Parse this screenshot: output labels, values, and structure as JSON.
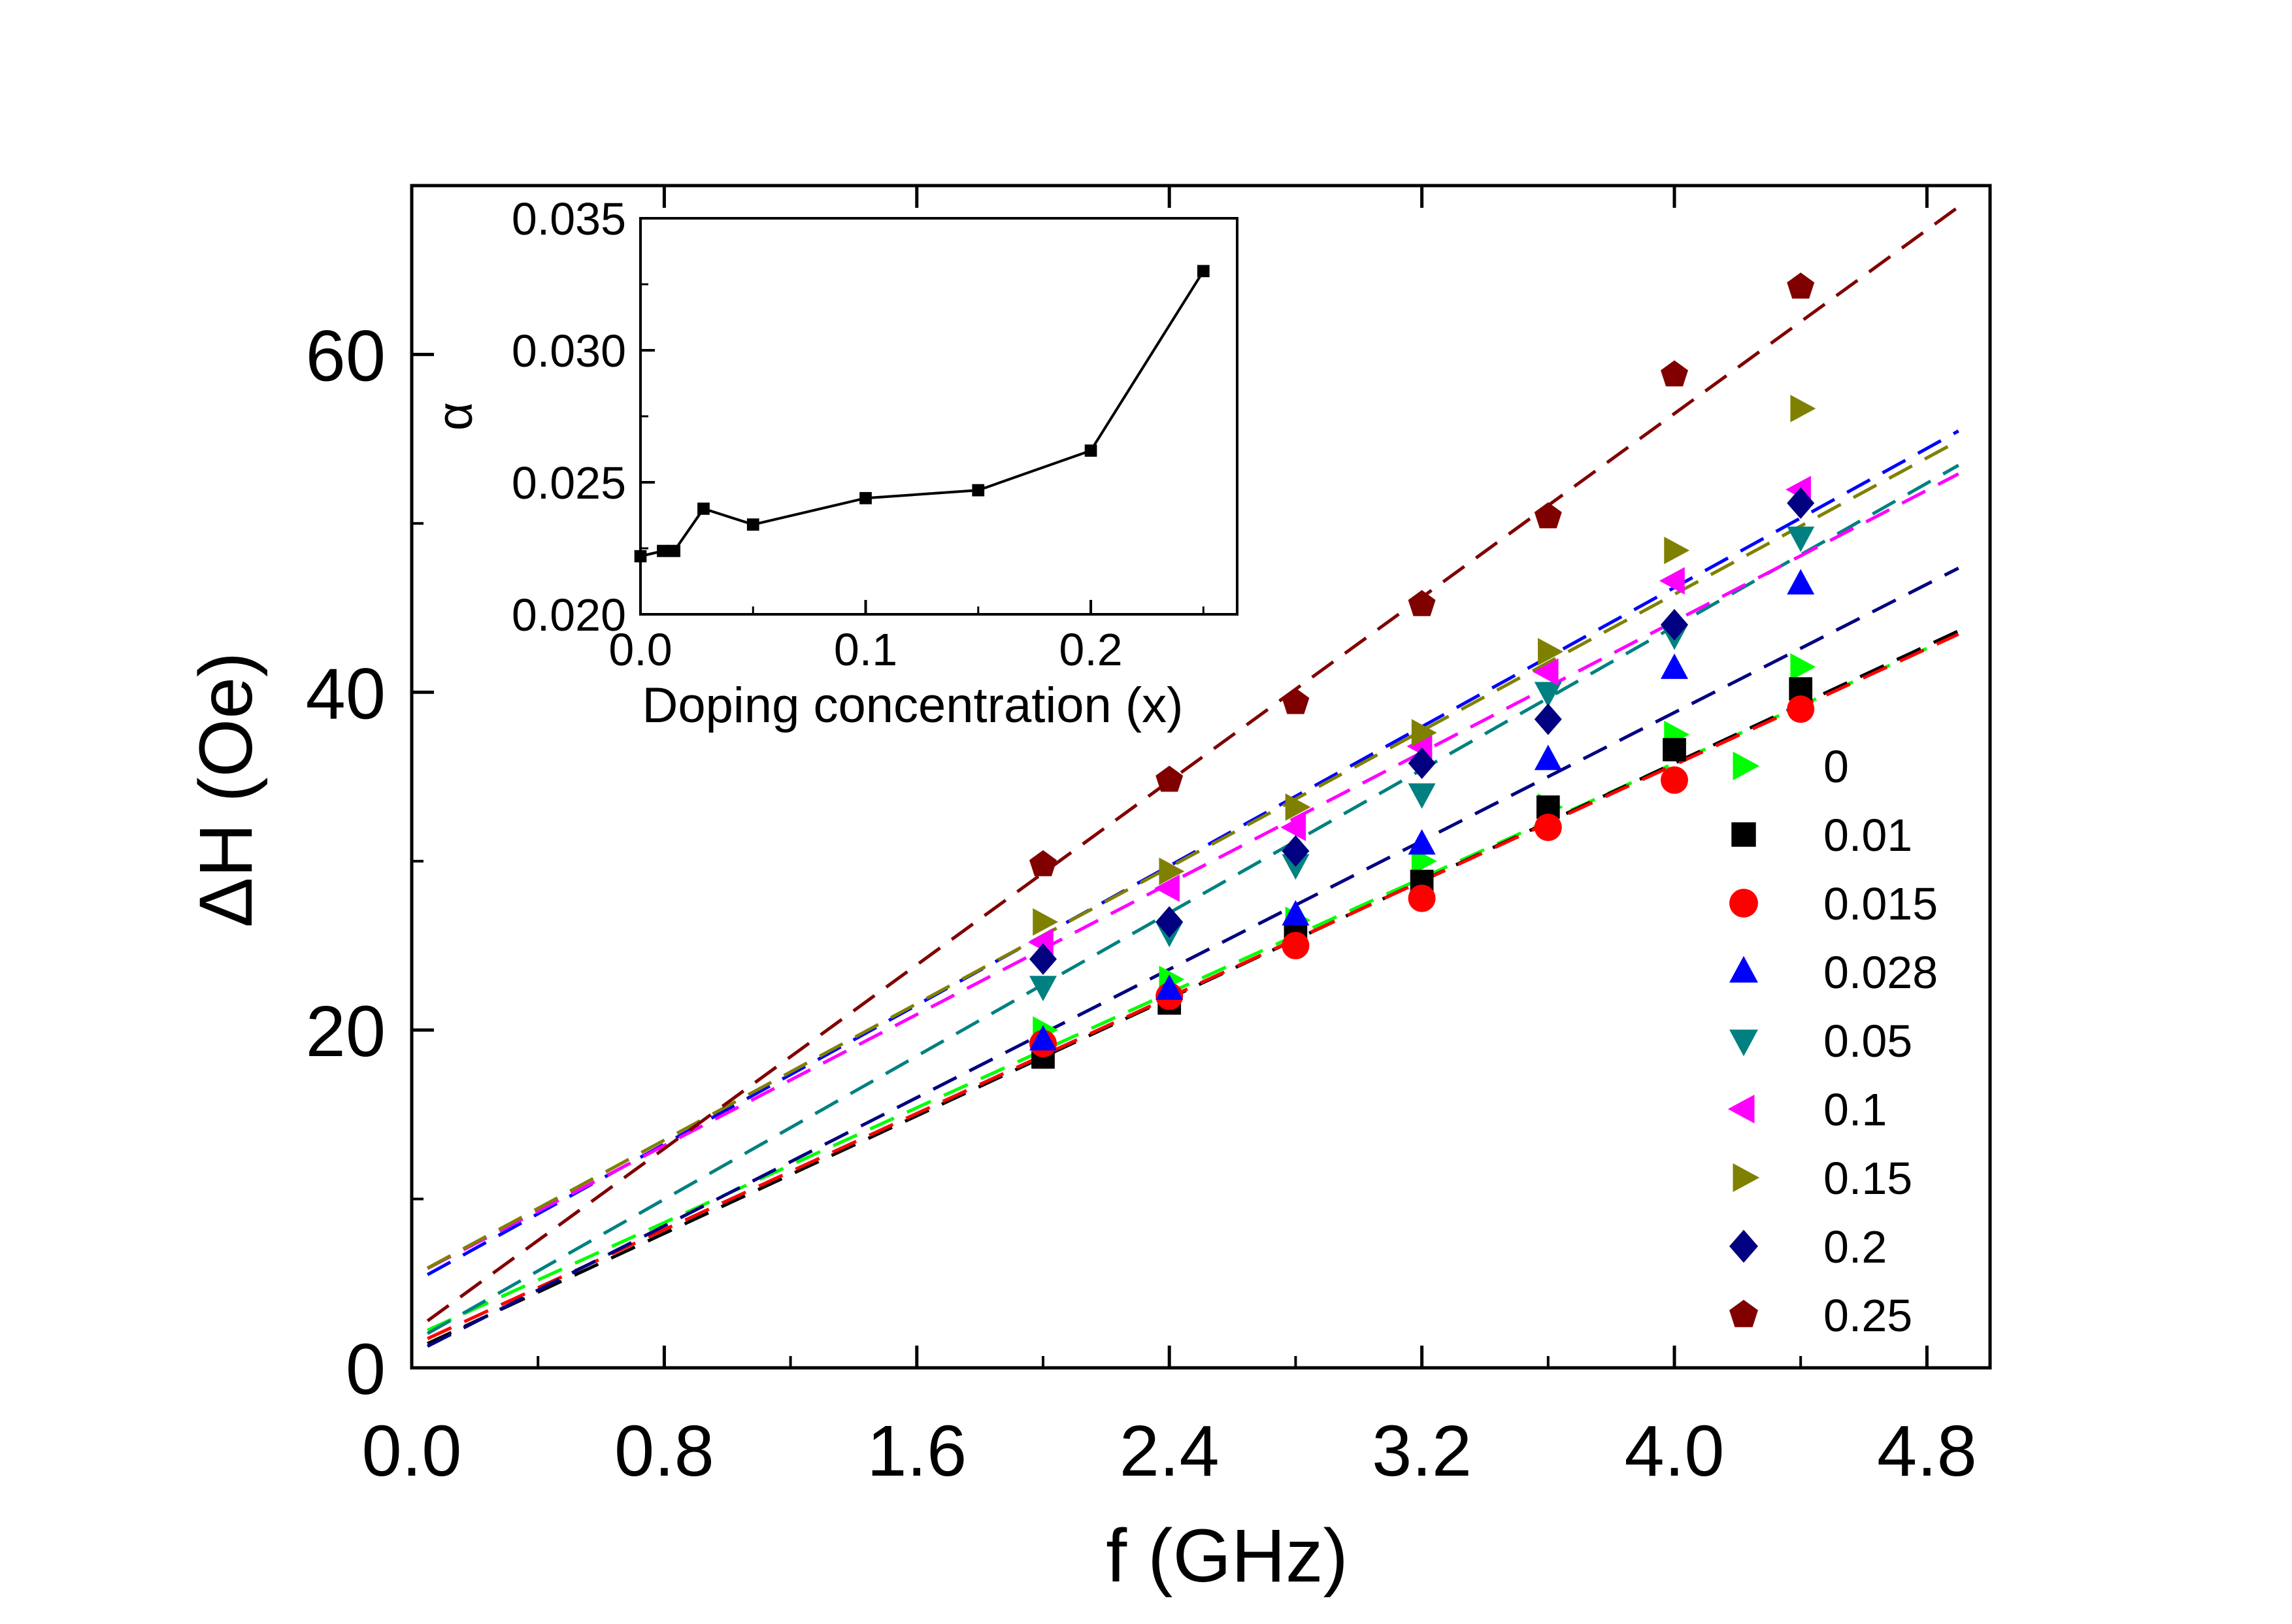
{
  "chart_data": [
    {
      "type": "scatter",
      "role": "main",
      "title": "",
      "xlabel": "f (GHz)",
      "ylabel": "ΔH (Oe)",
      "xlim": [
        0.0,
        5.0
      ],
      "ylim": [
        0,
        70
      ],
      "xticks": [
        0.0,
        0.8,
        1.6,
        2.4,
        3.2,
        4.0,
        4.8
      ],
      "xtick_labels": [
        "0.0",
        "0.8",
        "1.6",
        "2.4",
        "3.2",
        "4.0",
        "4.8"
      ],
      "yticks": [
        0,
        20,
        40,
        60
      ],
      "ytick_labels": [
        "0",
        "20",
        "40",
        "60"
      ],
      "grid": false,
      "legend_position": "bottom-right",
      "x": [
        2.0,
        2.4,
        2.8,
        3.2,
        3.6,
        4.0,
        4.4
      ],
      "series": [
        {
          "name": "0",
          "color": "#00FF00",
          "marker": "triangle-right",
          "values": [
            20.0,
            23.0,
            26.5,
            30.0,
            33.2,
            37.5,
            41.5
          ],
          "fit": {
            "intercept": 1.8,
            "slope": 8.5
          }
        },
        {
          "name": "0.01",
          "color": "#000000",
          "marker": "square",
          "values": [
            18.4,
            21.6,
            25.6,
            28.8,
            33.2,
            36.6,
            40.2
          ],
          "fit": {
            "intercept": 1.0,
            "slope": 8.7
          }
        },
        {
          "name": "0.015",
          "color": "#FF0000",
          "marker": "circle",
          "values": [
            19.2,
            22.0,
            25.0,
            27.8,
            32.0,
            34.8,
            39.0
          ],
          "fit": {
            "intercept": 1.3,
            "slope": 8.6
          }
        },
        {
          "name": "0.028",
          "color": "#0000FF",
          "marker": "triangle-up",
          "values": [
            19.4,
            22.4,
            26.8,
            31.0,
            36.0,
            41.4,
            46.4
          ],
          "fit": {
            "intercept": 5.0,
            "slope": 10.3
          }
        },
        {
          "name": "0.05",
          "color": "#008080",
          "marker": "triangle-down",
          "values": [
            22.6,
            25.8,
            29.8,
            34.0,
            40.0,
            43.4,
            49.2
          ],
          "fit": {
            "intercept": 1.5,
            "slope": 10.6
          }
        },
        {
          "name": "0.1",
          "color": "#FF00FF",
          "marker": "triangle-left",
          "values": [
            25.2,
            28.4,
            32.0,
            36.8,
            41.2,
            46.6,
            52.0
          ],
          "fit": {
            "intercept": 5.4,
            "slope": 9.7
          }
        },
        {
          "name": "0.15",
          "color": "#808000",
          "marker": "triangle-right",
          "values": [
            26.4,
            29.4,
            33.2,
            37.6,
            42.4,
            48.4,
            56.8
          ],
          "fit": {
            "intercept": 5.4,
            "slope": 10.1
          }
        },
        {
          "name": "0.2",
          "color": "#000080",
          "marker": "diamond",
          "values": [
            24.2,
            26.4,
            30.6,
            35.8,
            38.4,
            44.0,
            51.2
          ],
          "fit": {
            "intercept": 0.8,
            "slope": 9.5
          }
        },
        {
          "name": "0.25",
          "color": "#800000",
          "marker": "pentagon",
          "values": [
            29.8,
            34.8,
            39.4,
            45.2,
            50.4,
            58.8,
            64.0
          ],
          "fit": {
            "intercept": 2.1,
            "slope": 13.6
          }
        }
      ]
    },
    {
      "type": "line",
      "role": "inset",
      "title": "",
      "xlabel": "Doping concentration (x)",
      "ylabel": "α",
      "xlim": [
        0.0,
        0.265
      ],
      "ylim": [
        0.02,
        0.035
      ],
      "xticks": [
        0.0,
        0.1,
        0.2
      ],
      "xtick_labels": [
        "0.0",
        "0.1",
        "0.2"
      ],
      "yticks": [
        0.02,
        0.025,
        0.03,
        0.035
      ],
      "ytick_labels": [
        "0.020",
        "0.025",
        "0.030",
        "0.035"
      ],
      "grid": false,
      "color": "#000000",
      "marker": "square",
      "x": [
        0.0,
        0.01,
        0.015,
        0.028,
        0.05,
        0.1,
        0.15,
        0.2,
        0.25
      ],
      "y": [
        0.0222,
        0.0224,
        0.0224,
        0.024,
        0.0234,
        0.0244,
        0.0247,
        0.0262,
        0.033
      ]
    }
  ]
}
